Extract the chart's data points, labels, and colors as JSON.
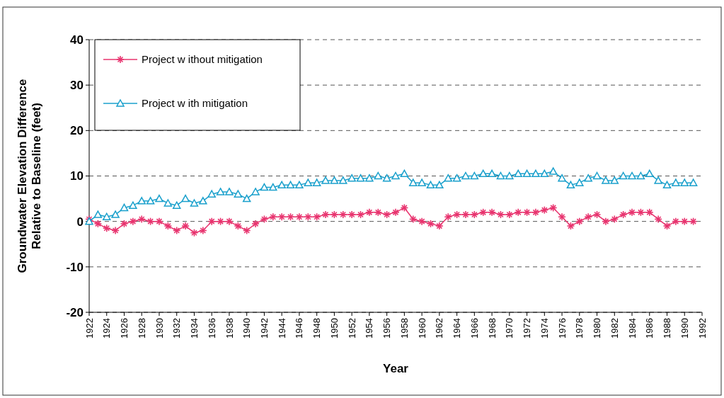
{
  "chart_data": {
    "type": "line",
    "xlabel": "Year",
    "ylabel": "Groundwater Elevation Difference Relative to Baseline (feet)",
    "x": [
      1922,
      1923,
      1924,
      1925,
      1926,
      1927,
      1928,
      1929,
      1930,
      1931,
      1932,
      1933,
      1934,
      1935,
      1936,
      1937,
      1938,
      1939,
      1940,
      1941,
      1942,
      1943,
      1944,
      1945,
      1946,
      1947,
      1948,
      1949,
      1950,
      1951,
      1952,
      1953,
      1954,
      1955,
      1956,
      1957,
      1958,
      1959,
      1960,
      1961,
      1962,
      1963,
      1964,
      1965,
      1966,
      1967,
      1968,
      1969,
      1970,
      1971,
      1972,
      1973,
      1974,
      1975,
      1976,
      1977,
      1978,
      1979,
      1980,
      1981,
      1982,
      1983,
      1984,
      1985,
      1986,
      1987,
      1988,
      1989,
      1990,
      1991
    ],
    "series": [
      {
        "name": "Project w ithout mitigation",
        "color": "#e8336e",
        "marker": "cross",
        "values": [
          0.5,
          -0.5,
          -1.5,
          -2,
          -0.5,
          0,
          0.5,
          0,
          0,
          -1,
          -2,
          -1,
          -2.5,
          -2,
          0,
          0,
          0,
          -1,
          -2,
          -0.5,
          0.5,
          1,
          1,
          1,
          1,
          1,
          1,
          1.5,
          1.5,
          1.5,
          1.5,
          1.5,
          2,
          2,
          1.5,
          2,
          3,
          0.5,
          0,
          -0.5,
          -1,
          1,
          1.5,
          1.5,
          1.5,
          2,
          2,
          1.5,
          1.5,
          2,
          2,
          2,
          2.5,
          3,
          1,
          -1,
          0,
          1,
          1.5,
          0,
          0.5,
          1.5,
          2,
          2,
          2,
          0.5,
          -1,
          0,
          0,
          0
        ]
      },
      {
        "name": "Project w ith mitigation",
        "color": "#1aa0cc",
        "marker": "triangle",
        "values": [
          0,
          1.5,
          1,
          1.5,
          3,
          3.5,
          4.5,
          4.5,
          5,
          4,
          3.5,
          5,
          4,
          4.5,
          6,
          6.5,
          6.5,
          6,
          5,
          6.5,
          7.5,
          7.5,
          8,
          8,
          8,
          8.5,
          8.5,
          9,
          9,
          9,
          9.5,
          9.5,
          9.5,
          10,
          9.5,
          10,
          10.5,
          8.5,
          8.5,
          8,
          8,
          9.5,
          9.5,
          10,
          10,
          10.5,
          10.5,
          10,
          10,
          10.5,
          10.5,
          10.5,
          10.5,
          11,
          9.5,
          8,
          8.5,
          9.5,
          10,
          9,
          9,
          10,
          10,
          10,
          10.5,
          9,
          8,
          8.5,
          8.5,
          8.5
        ]
      }
    ],
    "xlim": [
      1922,
      1992
    ],
    "xticks": [
      1922,
      1924,
      1926,
      1928,
      1930,
      1932,
      1934,
      1936,
      1938,
      1940,
      1942,
      1944,
      1946,
      1948,
      1950,
      1952,
      1954,
      1956,
      1958,
      1960,
      1962,
      1964,
      1966,
      1968,
      1970,
      1972,
      1974,
      1976,
      1978,
      1980,
      1982,
      1984,
      1986,
      1988,
      1990,
      1992
    ],
    "ylim": [
      -20,
      40
    ],
    "yticks": [
      -20,
      -10,
      0,
      10,
      20,
      30,
      40
    ],
    "grid": "y",
    "legend": "top left",
    "line_style": "solid"
  }
}
